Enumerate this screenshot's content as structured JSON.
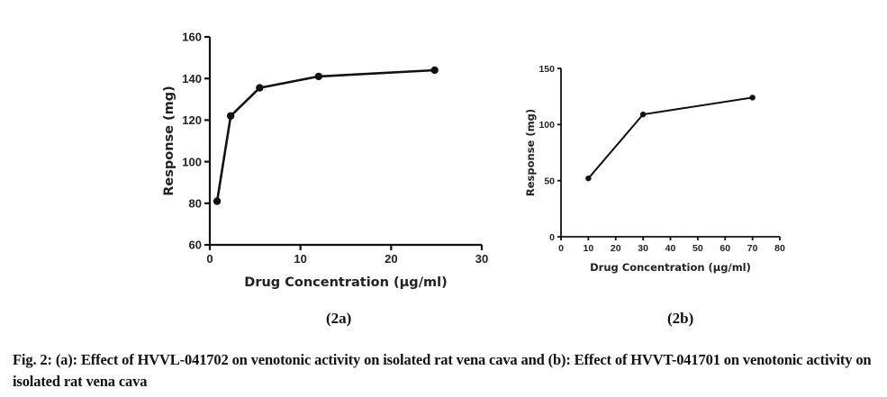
{
  "chart_data": [
    {
      "id": "2a",
      "type": "line",
      "panel_label": "(2a)",
      "xlabel": "Drug Concentration (µg/ml)",
      "ylabel": "Response (mg)",
      "xlim": [
        0,
        30
      ],
      "ylim": [
        60,
        160
      ],
      "xticks": [
        0,
        10,
        20,
        30
      ],
      "yticks": [
        60,
        80,
        100,
        120,
        140,
        160
      ],
      "grid": false,
      "series": [
        {
          "name": "HVVL-041702",
          "x": [
            0.8,
            2.3,
            5.5,
            12,
            24.8
          ],
          "y": [
            81,
            122,
            135.5,
            141,
            144
          ]
        }
      ],
      "color": "#111111"
    },
    {
      "id": "2b",
      "type": "line",
      "panel_label": "(2b)",
      "xlabel": "Drug Concentration (µg/ml)",
      "ylabel": "Response (mg)",
      "xlim": [
        0,
        80
      ],
      "ylim": [
        0,
        150
      ],
      "xticks": [
        0,
        10,
        20,
        30,
        40,
        50,
        60,
        70,
        80
      ],
      "yticks": [
        0,
        50,
        100,
        150
      ],
      "grid": false,
      "series": [
        {
          "name": "HVVT-041701",
          "x": [
            10,
            30,
            70
          ],
          "y": [
            52,
            109,
            124
          ]
        }
      ],
      "color": "#111111"
    }
  ],
  "caption": "Fig. 2: (a): Effect of HVVL-041702 on venotonic activity on isolated rat vena cava and (b): Effect of HVVT-041701 on venotonic activity on isolated rat vena cava"
}
